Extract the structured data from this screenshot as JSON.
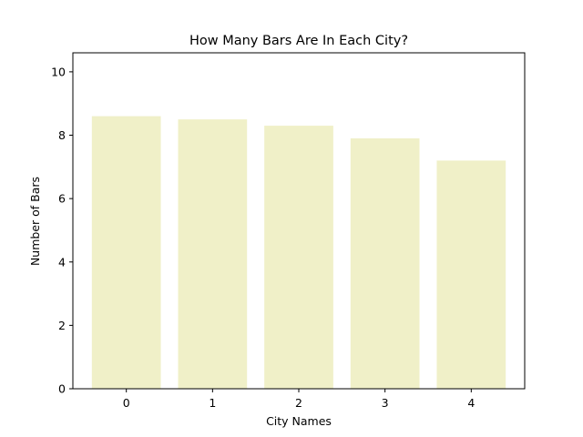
{
  "chart_data": {
    "type": "bar",
    "title": "How Many Bars Are In Each City?",
    "xlabel": "City Names",
    "ylabel": "Number of Bars",
    "categories": [
      "0",
      "1",
      "2",
      "3",
      "4"
    ],
    "values": [
      8.6,
      8.5,
      8.3,
      7.9,
      7.2
    ],
    "ylim": [
      0,
      10.6
    ],
    "yticks": [
      0,
      2,
      4,
      6,
      8,
      10
    ],
    "ytick_labels": [
      "0",
      "2",
      "4",
      "6",
      "8",
      "10"
    ],
    "grid": false,
    "bar_color": "#f0f0c8",
    "bar_opacity": 1
  }
}
